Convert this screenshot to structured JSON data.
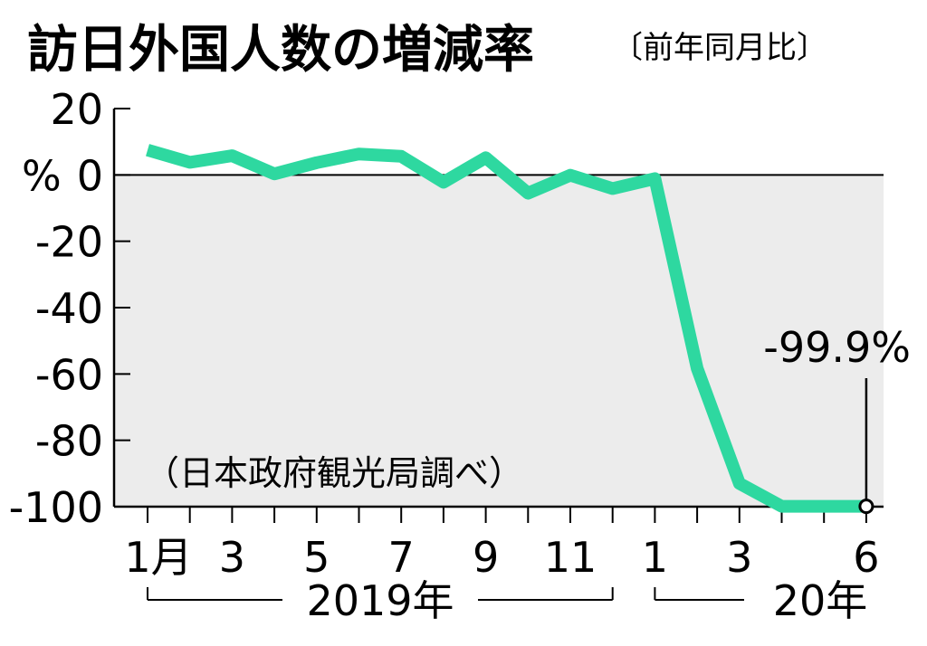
{
  "chart_data": {
    "type": "line",
    "title": "訪日外国人数の増減率",
    "subtitle": "〔前年同月比〕",
    "source": "（日本政府観光局調べ）",
    "y_unit": "%",
    "ylim": [
      -100,
      20
    ],
    "y_ticks": [
      20,
      0,
      -20,
      -40,
      -60,
      -80,
      -100
    ],
    "y_tick_labels": [
      "20",
      "0",
      "-20",
      "-40",
      "-60",
      "-80",
      "-100"
    ],
    "x": [
      "2019-01",
      "2019-02",
      "2019-03",
      "2019-04",
      "2019-05",
      "2019-06",
      "2019-07",
      "2019-08",
      "2019-09",
      "2019-10",
      "2019-11",
      "2019-12",
      "2020-01",
      "2020-02",
      "2020-03",
      "2020-04",
      "2020-05",
      "2020-06"
    ],
    "x_tick_labels": [
      "1月",
      "",
      "3",
      "",
      "5",
      "",
      "7",
      "",
      "9",
      "",
      "11",
      "",
      "1",
      "",
      "3",
      "",
      "",
      "6"
    ],
    "year_labels": [
      "2019年",
      "20年"
    ],
    "series": [
      {
        "values": [
          7.5,
          3.8,
          5.8,
          0.3,
          3.7,
          6.3,
          5.6,
          -2.2,
          5.2,
          -5.5,
          -0.1,
          -4.1,
          -1.1,
          -58.3,
          -93.0,
          -99.9,
          -99.9,
          -99.9
        ]
      }
    ],
    "annotation": {
      "text": "-99.9%",
      "index": 17
    },
    "shade_below_zero": true,
    "colors": {
      "line": "#2ed8a0",
      "shade": "#ececec",
      "axis": "#000000"
    }
  }
}
